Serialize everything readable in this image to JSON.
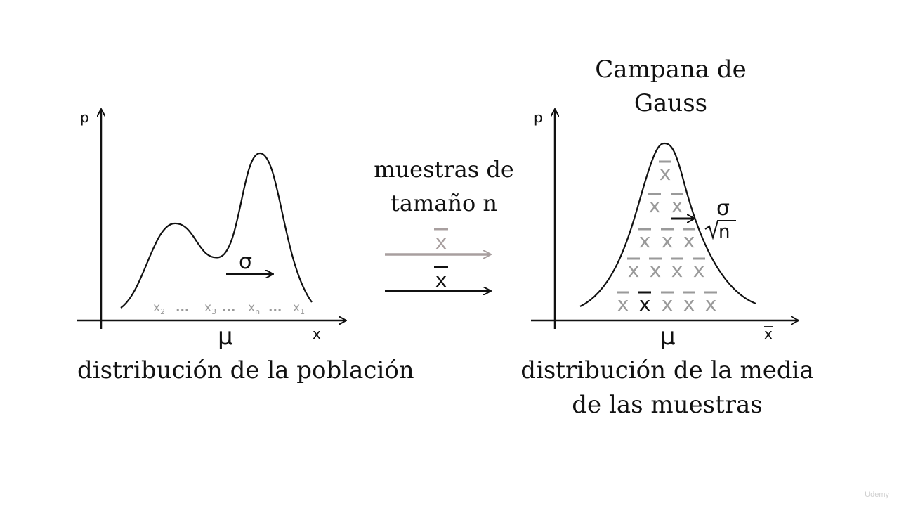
{
  "left": {
    "y_axis_label": "p",
    "x_axis_label": "x",
    "mean_label": "μ",
    "sigma_label": "σ",
    "samples": [
      "x",
      "2",
      "x",
      "3",
      "x",
      "n",
      "x",
      "1"
    ],
    "dots": "...",
    "caption": "distribución de la población"
  },
  "middle": {
    "line1": "muestras de",
    "line2": "tamaño n",
    "xbar": "x"
  },
  "right": {
    "title_line1": "Campana de",
    "title_line2": "Gauss",
    "y_axis_label": "p",
    "x_axis_label": "x",
    "mean_label": "μ",
    "sigma_label": "σ",
    "sqrt_n_label": "n",
    "xbar": "x",
    "caption_line1": "distribución de la media",
    "caption_line2": "de las muestras"
  },
  "colors": {
    "ink": "#111111",
    "gray": "#9a9a9a",
    "arrow_gray": "#a89f9f"
  },
  "watermark": "Udemy"
}
